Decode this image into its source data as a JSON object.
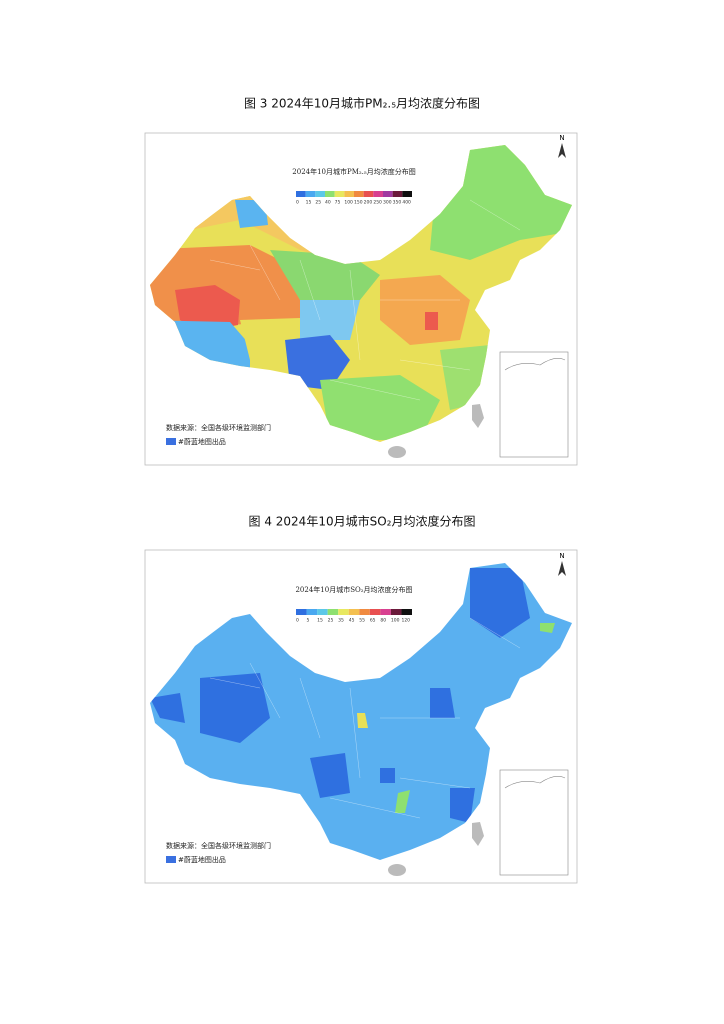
{
  "figures": [
    {
      "caption": "图 3 2024年10月城市PM₂.₅月均浓度分布图",
      "map_title": "2024年10月城市PM₂.₅月均浓度分布图",
      "north": "N",
      "legend_labels": [
        "0",
        "15",
        "25",
        "40",
        "75",
        "100",
        "150",
        "200",
        "250",
        "300",
        "350",
        "400"
      ],
      "legend_colors": [
        "#2f6fe0",
        "#4aa8f0",
        "#5cc8e8",
        "#8ee070",
        "#e8e860",
        "#f4c050",
        "#f08a40",
        "#e85050",
        "#d84090",
        "#a03aa0",
        "#6a1a3a",
        "#101010"
      ],
      "source": "数据来源：全国各级环境监测部门",
      "credit": "#蔚蓝地图出品"
    },
    {
      "caption": "图 4 2024年10月城市SO₂月均浓度分布图",
      "map_title": "2024年10月城市SO₂月均浓度分布图",
      "north": "N",
      "legend_labels": [
        "0",
        "5",
        "15",
        "25",
        "35",
        "45",
        "55",
        "65",
        "80",
        "100",
        "120"
      ],
      "legend_colors": [
        "#2f6fe0",
        "#4aa8f0",
        "#5cc8e8",
        "#8ee070",
        "#e8e860",
        "#f4c050",
        "#f08a40",
        "#e85050",
        "#d84090",
        "#6a1a3a",
        "#101010"
      ],
      "source": "数据来源：全国各级环境监测部门",
      "credit": "#蔚蓝地图出品"
    }
  ]
}
